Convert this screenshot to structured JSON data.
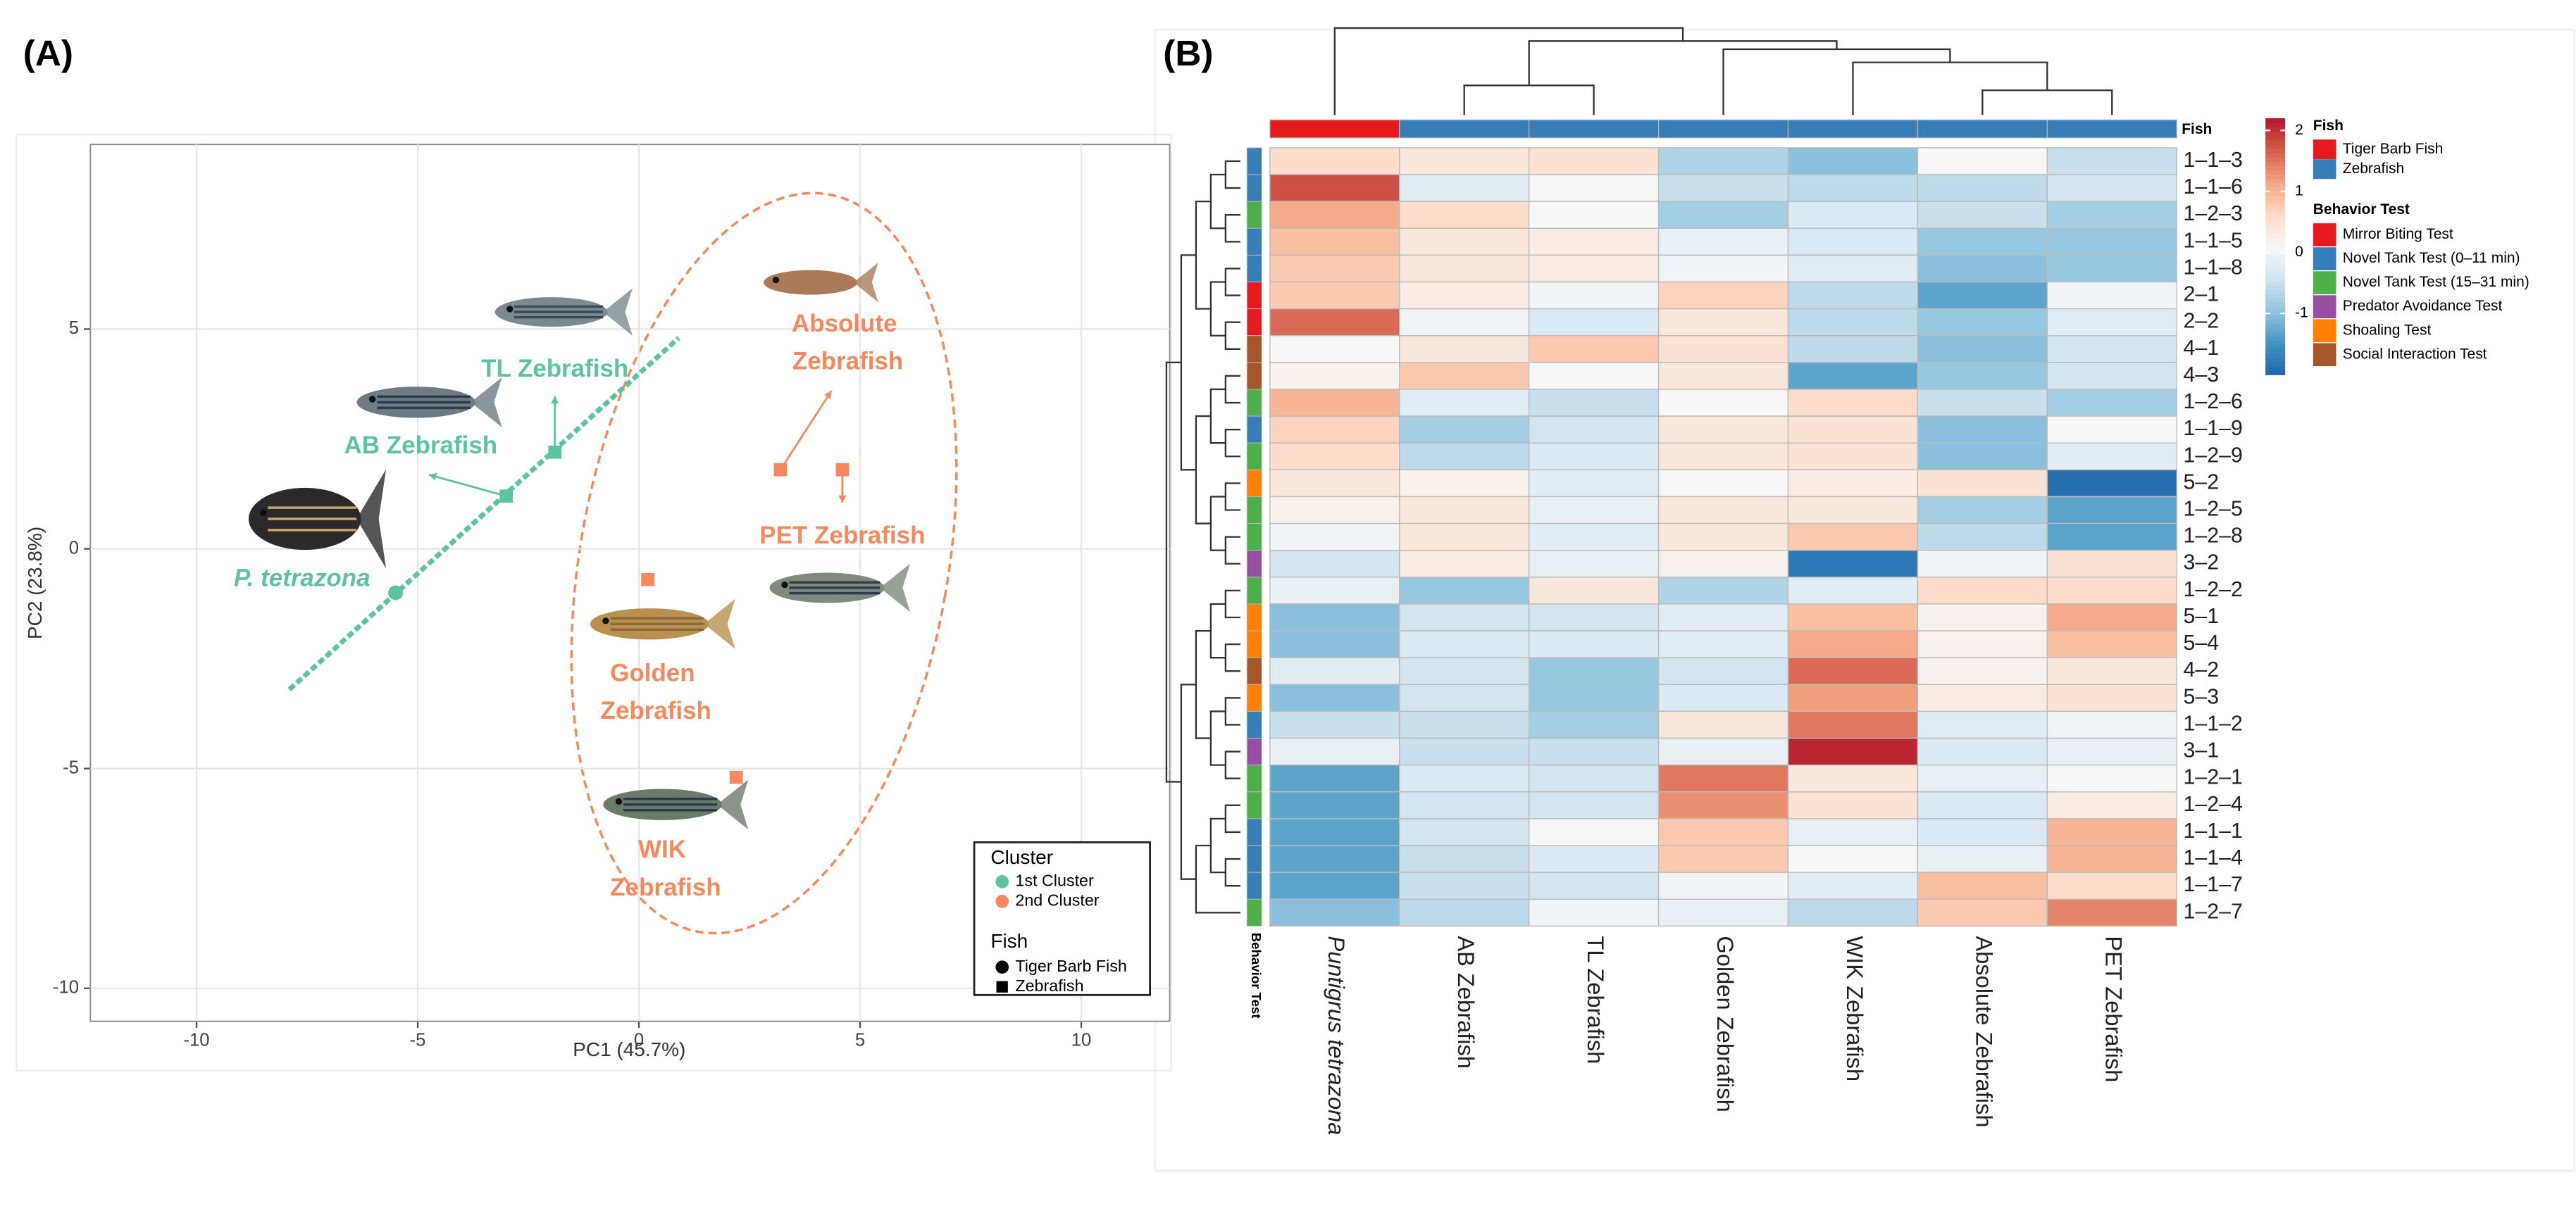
{
  "chart_data": [
    {
      "type": "scatter",
      "panel_label": "(A)",
      "xlabel": "PC1 (45.7%)",
      "ylabel": "PC2 (23.8%)",
      "xlim": [
        -12.4,
        12.0
      ],
      "ylim": [
        -10.75,
        9.2
      ],
      "xticks": [
        -10,
        -5,
        0,
        5,
        10
      ],
      "yticks": [
        -10,
        -5,
        0,
        5
      ],
      "grid": true,
      "series": [
        {
          "name": "1st Cluster",
          "color": "#5cc3a0",
          "x": [
            -5.5,
            -3.0,
            -1.9
          ],
          "values": [
            -1.0,
            1.2,
            2.2
          ],
          "fish": [
            "Tiger Barb Fish",
            "Zebrafish",
            "Zebrafish"
          ],
          "point_labels": [
            "P. tetrazona",
            "AB Zebrafish",
            "TL Zebrafish"
          ]
        },
        {
          "name": "2nd Cluster",
          "color": "#f5895e",
          "x": [
            3.2,
            4.6,
            0.2,
            2.2
          ],
          "values": [
            1.8,
            1.8,
            -0.7,
            -5.2
          ],
          "fish": [
            "Zebrafish",
            "Zebrafish",
            "Zebrafish",
            "Zebrafish"
          ],
          "point_labels": [
            "Absolute Zebrafish",
            "PET Zebrafish",
            "Golden Zebrafish",
            "WIK Zebrafish"
          ]
        }
      ],
      "trend_line": {
        "x": [
          -7.9,
          0.9
        ],
        "y": [
          -3.2,
          4.8
        ]
      },
      "legend_title": "Cluster",
      "legend": "bottom-right",
      "shape_legend": {
        "title": "Fish",
        "items": [
          "Tiger Barb Fish",
          "Zebrafish"
        ]
      }
    },
    {
      "type": "heatmap",
      "panel_label": "(B)",
      "columns": [
        "Puntigrus tetrazona",
        "AB Zebrafish",
        "TL Zebrafish",
        "Golden Zebrafish",
        "WIK Zebrafish",
        "Absolute Zebrafish",
        "PET Zebrafish"
      ],
      "column_groups": [
        "Tiger Barb Fish",
        "Zebrafish",
        "Zebrafish",
        "Zebrafish",
        "Zebrafish",
        "Zebrafish",
        "Zebrafish"
      ],
      "rows": [
        "1–1–3",
        "1–1–6",
        "1–2–3",
        "1–1–5",
        "1–1–8",
        "2–1",
        "2–2",
        "4–1",
        "4–3",
        "1–2–6",
        "1–1–9",
        "1–2–9",
        "5–2",
        "1–2–5",
        "1–2–8",
        "3–2",
        "1–2–2",
        "5–1",
        "5–4",
        "4–2",
        "5–3",
        "1–1–2",
        "3–1",
        "1–2–1",
        "1–2–4",
        "1–1–1",
        "1–1–4",
        "1–1–7",
        "1–2–7"
      ],
      "row_groups": [
        "Novel Tank Test (0–11 min)",
        "Novel Tank Test (0–11 min)",
        "Novel Tank Test (15–31 min)",
        "Novel Tank Test (0–11 min)",
        "Novel Tank Test (0–11 min)",
        "Mirror Biting Test",
        "Mirror Biting Test",
        "Social Interaction Test",
        "Social Interaction Test",
        "Novel Tank Test (15–31 min)",
        "Novel Tank Test (0–11 min)",
        "Novel Tank Test (15–31 min)",
        "Shoaling Test",
        "Novel Tank Test (15–31 min)",
        "Novel Tank Test (15–31 min)",
        "Predator Avoidance Test",
        "Novel Tank Test (15–31 min)",
        "Shoaling Test",
        "Shoaling Test",
        "Social Interaction Test",
        "Shoaling Test",
        "Novel Tank Test (0–11 min)",
        "Predator Avoidance Test",
        "Novel Tank Test (15–31 min)",
        "Novel Tank Test (15–31 min)",
        "Novel Tank Test (0–11 min)",
        "Novel Tank Test (0–11 min)",
        "Novel Tank Test (0–11 min)",
        "Novel Tank Test (15–31 min)"
      ],
      "values": [
        [
          0.6,
          0.4,
          0.5,
          -0.7,
          -1.0,
          0.1,
          -0.5
        ],
        [
          1.8,
          -0.2,
          0.1,
          -0.5,
          -0.6,
          -0.6,
          -0.4
        ],
        [
          1.1,
          0.6,
          0.1,
          -0.8,
          -0.3,
          -0.5,
          -0.8
        ],
        [
          0.9,
          0.4,
          0.3,
          -0.1,
          -0.3,
          -0.9,
          -0.9
        ],
        [
          0.8,
          0.4,
          0.3,
          0.0,
          -0.2,
          -1.0,
          -0.9
        ],
        [
          0.8,
          0.3,
          0.0,
          0.7,
          -0.6,
          -1.3,
          0.0
        ],
        [
          1.6,
          0.0,
          -0.3,
          0.4,
          -0.6,
          -0.9,
          -0.2
        ],
        [
          0.1,
          0.4,
          0.8,
          0.5,
          -0.6,
          -1.0,
          -0.4
        ],
        [
          0.2,
          0.8,
          0.1,
          0.4,
          -1.3,
          -0.9,
          -0.4
        ],
        [
          1.0,
          -0.2,
          -0.5,
          0.1,
          0.6,
          -0.5,
          -0.8
        ],
        [
          0.7,
          -0.8,
          -0.4,
          0.4,
          0.5,
          -1.0,
          0.1
        ],
        [
          0.6,
          -0.6,
          -0.3,
          0.4,
          0.5,
          -1.0,
          -0.2
        ],
        [
          0.4,
          0.2,
          -0.2,
          0.1,
          0.3,
          0.5,
          -1.9
        ],
        [
          0.2,
          0.4,
          -0.1,
          0.4,
          0.4,
          -0.8,
          -1.3
        ],
        [
          0.0,
          0.4,
          -0.2,
          0.4,
          0.8,
          -0.6,
          -1.3
        ],
        [
          -0.4,
          0.3,
          -0.1,
          0.2,
          -1.8,
          0.0,
          0.5
        ],
        [
          -0.1,
          -0.9,
          0.4,
          -0.7,
          -0.2,
          0.6,
          0.6
        ],
        [
          -1.0,
          -0.4,
          -0.4,
          -0.2,
          0.9,
          0.2,
          1.1
        ],
        [
          -1.0,
          -0.3,
          -0.3,
          -0.2,
          1.1,
          0.2,
          0.9
        ],
        [
          -0.2,
          -0.4,
          -0.9,
          -0.4,
          1.6,
          0.2,
          0.4
        ],
        [
          -1.0,
          -0.4,
          -0.9,
          -0.3,
          1.2,
          0.3,
          0.5
        ],
        [
          -0.5,
          -0.5,
          -0.8,
          0.4,
          1.5,
          -0.2,
          0.0
        ],
        [
          -0.1,
          -0.5,
          -0.5,
          -0.1,
          2.1,
          -0.3,
          -0.1
        ],
        [
          -1.3,
          -0.3,
          -0.4,
          1.5,
          0.4,
          -0.1,
          0.1
        ],
        [
          -1.3,
          -0.4,
          -0.4,
          1.3,
          0.5,
          -0.3,
          0.3
        ],
        [
          -1.3,
          -0.4,
          0.1,
          0.8,
          -0.1,
          -0.3,
          1.0
        ],
        [
          -1.3,
          -0.5,
          -0.3,
          0.8,
          0.1,
          -0.1,
          1.0
        ],
        [
          -1.3,
          -0.5,
          -0.4,
          0.0,
          -0.2,
          0.9,
          0.6
        ],
        [
          -1.0,
          -0.6,
          0.0,
          -0.1,
          -0.6,
          0.8,
          1.4
        ]
      ],
      "colors": [
        "#2166ac",
        "#4393c3",
        "#92c5de",
        "#d1e5f0",
        "#f7f7f7",
        "#fddbc7",
        "#f4a582",
        "#d6604d",
        "#b2182b"
      ],
      "colorlim": [
        -2.0,
        2.2
      ],
      "colorticks": [
        2,
        1,
        0,
        -1
      ],
      "column_strip_label": "Fish",
      "row_strip_label": "Behavior Test",
      "fish_legend": {
        "title": "Fish",
        "items": [
          {
            "name": "Tiger Barb Fish",
            "color": "#e41a1c"
          },
          {
            "name": "Zebrafish",
            "color": "#377eb8"
          }
        ]
      },
      "behavior_legend": {
        "title": "Behavior Test",
        "items": [
          {
            "name": "Mirror Biting Test",
            "color": "#e41a1c"
          },
          {
            "name": "Novel Tank Test (0–11 min)",
            "color": "#377eb8"
          },
          {
            "name": "Novel Tank Test (15–31 min)",
            "color": "#4daf4a"
          },
          {
            "name": "Predator Avoidance Test",
            "color": "#984ea3"
          },
          {
            "name": "Shoaling Test",
            "color": "#ff7f00"
          },
          {
            "name": "Social Interaction Test",
            "color": "#a65628"
          }
        ]
      }
    }
  ]
}
